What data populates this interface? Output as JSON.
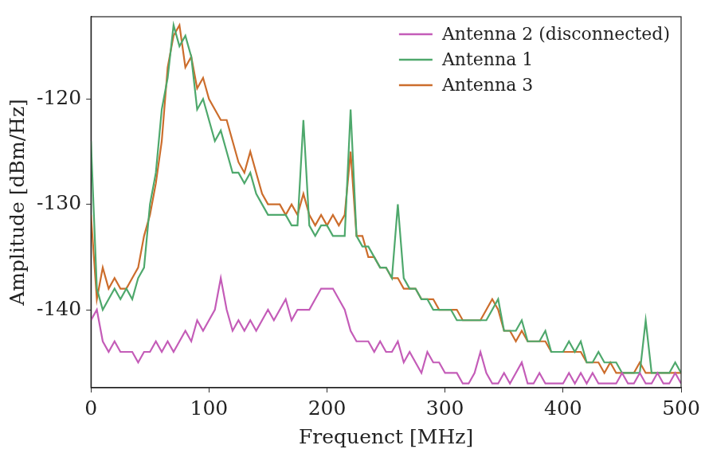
{
  "chart_data": {
    "type": "line",
    "x_label": "Frequenct [MHz]",
    "y_label": "Amplitude [dBm/Hz]",
    "xlim": [
      0,
      500
    ],
    "xticks": [
      0,
      100,
      200,
      300,
      400,
      500
    ],
    "ylim": [
      -147.4,
      -112.2
    ],
    "yticks": [
      -140,
      -130,
      -120
    ],
    "grid": false,
    "legend": "upper right",
    "x": [
      0,
      5,
      10,
      15,
      20,
      25,
      30,
      35,
      40,
      45,
      50,
      55,
      60,
      65,
      70,
      75,
      80,
      85,
      90,
      95,
      100,
      105,
      110,
      115,
      120,
      125,
      130,
      135,
      140,
      145,
      150,
      155,
      160,
      165,
      170,
      175,
      180,
      185,
      190,
      195,
      200,
      205,
      210,
      215,
      220,
      225,
      230,
      235,
      240,
      245,
      250,
      255,
      260,
      265,
      270,
      275,
      280,
      285,
      290,
      295,
      300,
      305,
      310,
      315,
      320,
      325,
      330,
      335,
      340,
      345,
      350,
      355,
      360,
      365,
      370,
      375,
      380,
      385,
      390,
      395,
      400,
      405,
      410,
      415,
      420,
      425,
      430,
      435,
      440,
      445,
      450,
      455,
      460,
      465,
      470,
      475,
      480,
      485,
      490,
      495,
      500
    ],
    "series": [
      {
        "name": "Antenna 2 (disconnected)",
        "color": "#c45cb8",
        "values": [
          -141,
          -140,
          -143,
          -144,
          -143,
          -144,
          -144,
          -144,
          -145,
          -144,
          -144,
          -143,
          -144,
          -143,
          -144,
          -143,
          -142,
          -143,
          -141,
          -142,
          -141,
          -140,
          -137,
          -140,
          -142,
          -141,
          -142,
          -141,
          -142,
          -141,
          -140,
          -141,
          -140,
          -139,
          -141,
          -140,
          -140,
          -140,
          -139,
          -138,
          -138,
          -138,
          -139,
          -140,
          -142,
          -143,
          -143,
          -143,
          -144,
          -143,
          -144,
          -144,
          -143,
          -145,
          -144,
          -145,
          -146,
          -144,
          -145,
          -145,
          -146,
          -146,
          -146,
          -147,
          -147,
          -146,
          -144,
          -146,
          -147,
          -147,
          -146,
          -147,
          -146,
          -145,
          -147,
          -147,
          -146,
          -147,
          -147,
          -147,
          -147,
          -146,
          -147,
          -146,
          -147,
          -146,
          -147,
          -147,
          -147,
          -147,
          -146,
          -147,
          -147,
          -146,
          -147,
          -147,
          -146,
          -147,
          -147,
          -146,
          -147
        ]
      },
      {
        "name": "Antenna 1",
        "color": "#4ea86c",
        "values": [
          -124,
          -138,
          -140,
          -139,
          -138,
          -139,
          -138,
          -139,
          -137,
          -136,
          -130,
          -127,
          -121,
          -118,
          -113,
          -115,
          -114,
          -116,
          -121,
          -120,
          -122,
          -124,
          -123,
          -125,
          -127,
          -127,
          -128,
          -127,
          -129,
          -130,
          -131,
          -131,
          -131,
          -131,
          -132,
          -132,
          -122,
          -132,
          -133,
          -132,
          -132,
          -133,
          -133,
          -133,
          -121,
          -133,
          -134,
          -134,
          -135,
          -136,
          -136,
          -137,
          -130,
          -137,
          -138,
          -138,
          -139,
          -139,
          -140,
          -140,
          -140,
          -140,
          -141,
          -141,
          -141,
          -141,
          -141,
          -141,
          -140,
          -139,
          -142,
          -142,
          -142,
          -141,
          -143,
          -143,
          -143,
          -142,
          -144,
          -144,
          -144,
          -143,
          -144,
          -143,
          -145,
          -145,
          -144,
          -145,
          -145,
          -145,
          -146,
          -146,
          -146,
          -146,
          -141,
          -146,
          -146,
          -146,
          -146,
          -145,
          -146
        ]
      },
      {
        "name": "Antenna 3",
        "color": "#cc6d2c",
        "values": [
          -131,
          -139,
          -136,
          -138,
          -137,
          -138,
          -138,
          -137,
          -136,
          -133,
          -131,
          -128,
          -124,
          -117,
          -114,
          -113,
          -117,
          -116,
          -119,
          -118,
          -120,
          -121,
          -122,
          -122,
          -124,
          -126,
          -127,
          -125,
          -127,
          -129,
          -130,
          -130,
          -130,
          -131,
          -130,
          -131,
          -129,
          -131,
          -132,
          -131,
          -132,
          -131,
          -132,
          -131,
          -125,
          -133,
          -133,
          -135,
          -135,
          -136,
          -136,
          -137,
          -137,
          -138,
          -138,
          -138,
          -139,
          -139,
          -139,
          -140,
          -140,
          -140,
          -140,
          -141,
          -141,
          -141,
          -141,
          -140,
          -139,
          -140,
          -142,
          -142,
          -143,
          -142,
          -143,
          -143,
          -143,
          -143,
          -144,
          -144,
          -144,
          -144,
          -144,
          -144,
          -145,
          -145,
          -145,
          -146,
          -145,
          -146,
          -146,
          -146,
          -146,
          -145,
          -146,
          -146,
          -146,
          -146,
          -146,
          -146,
          -146
        ]
      }
    ]
  }
}
